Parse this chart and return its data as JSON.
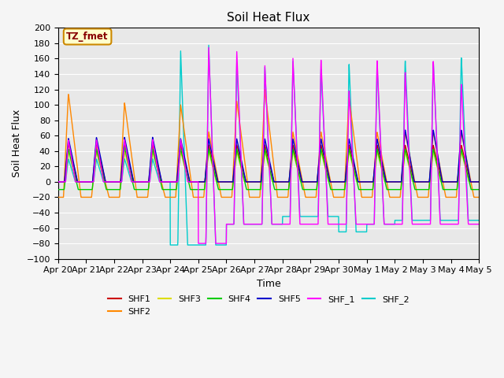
{
  "title": "Soil Heat Flux",
  "xlabel": "Time",
  "ylabel": "Soil Heat Flux",
  "ylim": [
    -100,
    200
  ],
  "yticks": [
    -100,
    -80,
    -60,
    -40,
    -20,
    0,
    20,
    40,
    60,
    80,
    100,
    120,
    140,
    160,
    180,
    200
  ],
  "xtick_labels": [
    "Apr 20",
    "Apr 21",
    "Apr 22",
    "Apr 23",
    "Apr 24",
    "Apr 25",
    "Apr 26",
    "Apr 27",
    "Apr 28",
    "Apr 29",
    "Apr 30",
    "May 1",
    "May 2",
    "May 3",
    "May 4",
    "May 5"
  ],
  "colors": {
    "SHF1": "#cc0000",
    "SHF2": "#ff8800",
    "SHF3": "#dddd00",
    "SHF4": "#00cc00",
    "SHF5": "#0000cc",
    "SHF_1": "#ff00ff",
    "SHF_2": "#00cccc"
  },
  "annotation_text": "TZ_fmet",
  "annotation_bg": "#ffffcc",
  "annotation_border": "#cc8800",
  "background_color": "#e8e8e8",
  "grid_color": "#ffffff",
  "title_fontsize": 11,
  "legend_fontsize": 8,
  "tick_fontsize": 8
}
